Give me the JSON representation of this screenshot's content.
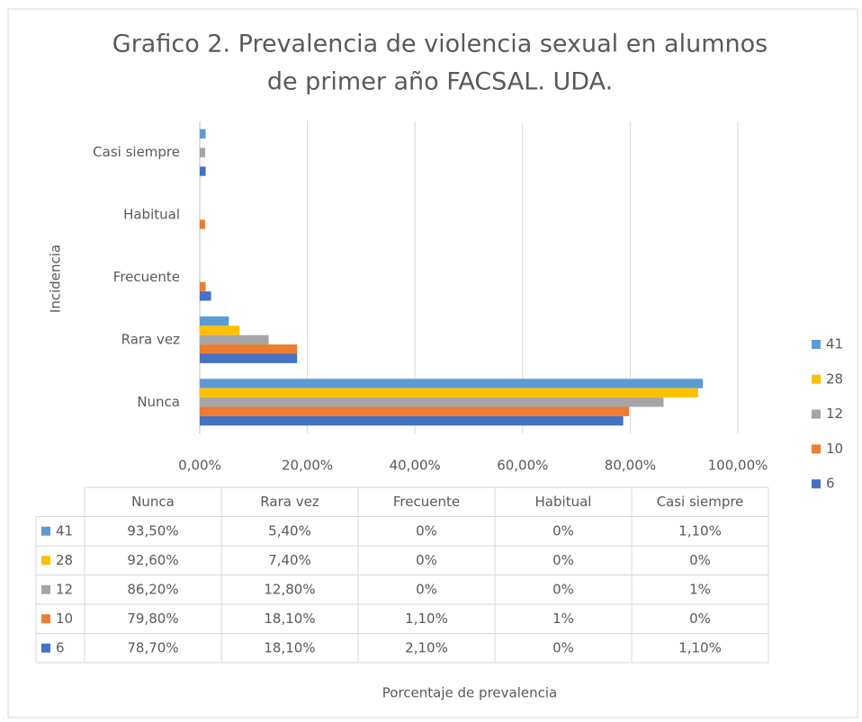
{
  "chart_data": {
    "type": "bar",
    "orientation": "horizontal",
    "title": "Grafico 2. Prevalencia de violencia sexual en alumnos de primer año FACSAL. UDA.",
    "y_label": "Incidencia",
    "x_label": "Porcentaje de prevalencia",
    "categories": [
      "Nunca",
      "Rara vez",
      "Frecuente",
      "Habitual",
      "Casi siempre"
    ],
    "series": [
      {
        "name": "41",
        "color": "#5b9bd5",
        "values": [
          93.5,
          5.4,
          0,
          0,
          1.1
        ],
        "value_labels": [
          "93,50%",
          "5,40%",
          "0%",
          "0%",
          "1,10%"
        ]
      },
      {
        "name": "28",
        "color": "#ffc000",
        "values": [
          92.6,
          7.4,
          0,
          0,
          0
        ],
        "value_labels": [
          "92,60%",
          "7,40%",
          "0%",
          "0%",
          "0%"
        ]
      },
      {
        "name": "12",
        "color": "#a5a5a5",
        "values": [
          86.2,
          12.8,
          0,
          0,
          1
        ],
        "value_labels": [
          "86,20%",
          "12,80%",
          "0%",
          "0%",
          "1%"
        ]
      },
      {
        "name": "10",
        "color": "#ed7d31",
        "values": [
          79.8,
          18.1,
          1.1,
          1,
          0
        ],
        "value_labels": [
          "79,80%",
          "18,10%",
          "1,10%",
          "1%",
          "0%"
        ]
      },
      {
        "name": "6",
        "color": "#4472c4",
        "values": [
          78.7,
          18.1,
          2.1,
          0,
          1.1
        ],
        "value_labels": [
          "78,70%",
          "18,10%",
          "2,10%",
          "0%",
          "1,10%"
        ]
      }
    ],
    "xlim": [
      0,
      100
    ],
    "xticks": [
      {
        "value": 0,
        "label": "0,00%"
      },
      {
        "value": 20,
        "label": "20,00%"
      },
      {
        "value": 40,
        "label": "40,00%"
      },
      {
        "value": 60,
        "label": "60,00%"
      },
      {
        "value": 80,
        "label": "80,00%"
      },
      {
        "value": 100,
        "label": "100,00%"
      }
    ],
    "grid": true,
    "legend": "right",
    "data_table": true
  }
}
